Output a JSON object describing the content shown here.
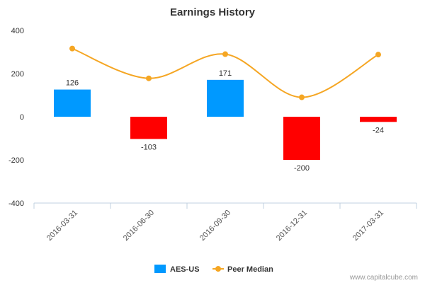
{
  "chart_data": {
    "type": "bar",
    "title": "Earnings History",
    "categories": [
      "2016-03-31",
      "2016-06-30",
      "2016-09-30",
      "2016-12-31",
      "2017-03-31"
    ],
    "ylim": [
      -400,
      400
    ],
    "yticks": [
      400,
      200,
      0,
      -200,
      -400
    ],
    "xlabel": "",
    "ylabel": "",
    "grid": false,
    "legend_position": "bottom",
    "series": [
      {
        "name": "AES-US",
        "type": "bar",
        "values": [
          126,
          -103,
          171,
          -200,
          -24
        ],
        "labels": [
          "126",
          "-103",
          "171",
          "-200",
          "-24"
        ],
        "positive_color": "#0099ff",
        "negative_color": "#ff0000"
      },
      {
        "name": "Peer Median",
        "type": "line",
        "values": [
          316,
          178,
          290,
          90,
          288
        ],
        "color": "#f5a623"
      }
    ]
  },
  "credit": "www.capitalcube.com"
}
